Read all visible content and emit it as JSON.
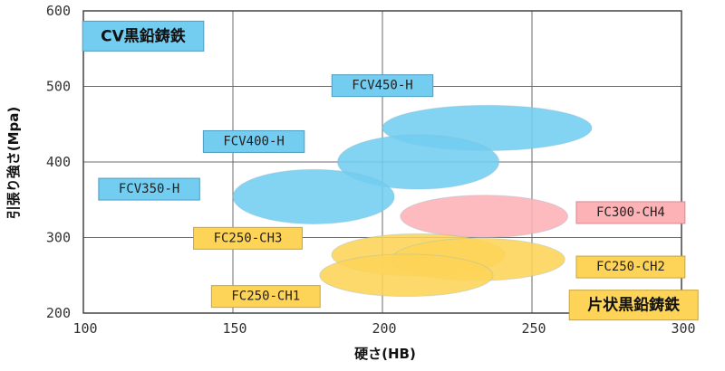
{
  "chart_data": {
    "type": "scatter",
    "title": "",
    "xlabel": "硬さ(HB)",
    "ylabel": "引張り強さ(Mpa)",
    "xlim": [
      100,
      300
    ],
    "ylim": [
      200,
      600
    ],
    "xticks": [
      100,
      150,
      200,
      250,
      300
    ],
    "yticks": [
      200,
      300,
      400,
      500,
      600
    ],
    "grid": true,
    "colors": {
      "cv": "#72cdf0",
      "flake": "#fdd458",
      "ch4": "#fdb2b6"
    },
    "regions": [
      {
        "name": "CV黒鉛鋳鉄",
        "x_center": 235,
        "y_center": 445,
        "x_halfwidth": 35,
        "y_halfwidth": 30,
        "color": "#72cdf0"
      },
      {
        "name": "CV黒鉛鋳鉄",
        "x_center": 212,
        "y_center": 400,
        "x_halfwidth": 27,
        "y_halfwidth": 36,
        "color": "#72cdf0"
      },
      {
        "name": "CV黒鉛鋳鉄",
        "x_center": 177,
        "y_center": 354,
        "x_halfwidth": 27,
        "y_halfwidth": 36,
        "color": "#72cdf0"
      },
      {
        "name": "FC300-CH4",
        "x_center": 234,
        "y_center": 328,
        "x_halfwidth": 28,
        "y_halfwidth": 28,
        "color": "#fdb2b6"
      },
      {
        "name": "FC250-CH3",
        "x_center": 212,
        "y_center": 277,
        "x_halfwidth": 29,
        "y_halfwidth": 28,
        "color": "#fdd458"
      },
      {
        "name": "FC250-CH2",
        "x_center": 232,
        "y_center": 271,
        "x_halfwidth": 29,
        "y_halfwidth": 28,
        "color": "#fdd458"
      },
      {
        "name": "FC250-CH1",
        "x_center": 208,
        "y_center": 250,
        "x_halfwidth": 29,
        "y_halfwidth": 28,
        "color": "#fdd458"
      }
    ],
    "labels": [
      {
        "text": "CV黒鉛鋳鉄",
        "style": "cv-big",
        "x": 120,
        "y": 566
      },
      {
        "text": "FCV450-H",
        "style": "cv",
        "x": 200,
        "y": 501
      },
      {
        "text": "FCV400-H",
        "style": "cv",
        "x": 157,
        "y": 427
      },
      {
        "text": "FCV350-H",
        "style": "cv",
        "x": 122,
        "y": 364
      },
      {
        "text": "FC300-CH4",
        "style": "pink",
        "x": 283,
        "y": 333
      },
      {
        "text": "FC250-CH3",
        "style": "yellow",
        "x": 155,
        "y": 299
      },
      {
        "text": "FC250-CH2",
        "style": "yellow",
        "x": 283,
        "y": 261
      },
      {
        "text": "FC250-CH1",
        "style": "yellow",
        "x": 161,
        "y": 222
      },
      {
        "text": "片状黒鉛鋳鉄",
        "style": "yellow-big",
        "x": 284,
        "y": 210
      }
    ]
  }
}
